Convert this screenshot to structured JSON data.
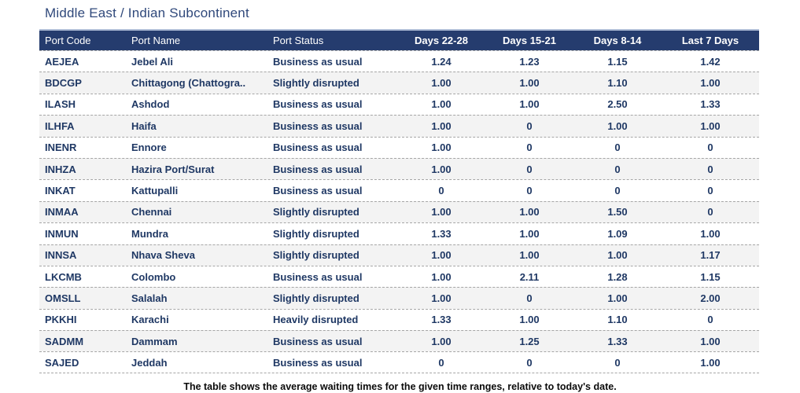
{
  "title": "Middle East / Indian Subcontinent",
  "caption": "The table shows the average waiting times for the given time ranges, relative to today's date.",
  "colors": {
    "header_background": "#253C6E",
    "header_text": "#FFFFFF",
    "cell_text": "#1F3864",
    "title_text": "#30497B",
    "row_stripe": "#F3F3F3",
    "separator": "#A6A6A6"
  },
  "chart_data": {
    "type": "table",
    "title": "Middle East / Indian Subcontinent",
    "columns": [
      {
        "label": "Port Code",
        "numeric": false
      },
      {
        "label": "Port Name",
        "numeric": false
      },
      {
        "label": "Port Status",
        "numeric": false
      },
      {
        "label": "Days 22-28",
        "numeric": true
      },
      {
        "label": "Days 15-21",
        "numeric": true
      },
      {
        "label": "Days 8-14",
        "numeric": true
      },
      {
        "label": "Last 7 Days",
        "numeric": true
      }
    ],
    "rows": [
      [
        "AEJEA",
        "Jebel Ali",
        "Business as usual",
        "1.24",
        "1.23",
        "1.15",
        "1.42"
      ],
      [
        "BDCGP",
        "Chittagong (Chattogra..",
        "Slightly disrupted",
        "1.00",
        "1.00",
        "1.10",
        "1.00"
      ],
      [
        "ILASH",
        "Ashdod",
        "Business as usual",
        "1.00",
        "1.00",
        "2.50",
        "1.33"
      ],
      [
        "ILHFA",
        "Haifa",
        "Business as usual",
        "1.00",
        "0",
        "1.00",
        "1.00"
      ],
      [
        "INENR",
        "Ennore",
        "Business as usual",
        "1.00",
        "0",
        "0",
        "0"
      ],
      [
        "INHZA",
        "Hazira Port/Surat",
        "Business as usual",
        "1.00",
        "0",
        "0",
        "0"
      ],
      [
        "INKAT",
        "Kattupalli",
        "Business as usual",
        "0",
        "0",
        "0",
        "0"
      ],
      [
        "INMAA",
        "Chennai",
        "Slightly disrupted",
        "1.00",
        "1.00",
        "1.50",
        "0"
      ],
      [
        "INMUN",
        "Mundra",
        "Slightly disrupted",
        "1.33",
        "1.00",
        "1.09",
        "1.00"
      ],
      [
        "INNSA",
        "Nhava Sheva",
        "Slightly disrupted",
        "1.00",
        "1.00",
        "1.00",
        "1.17"
      ],
      [
        "LKCMB",
        "Colombo",
        "Business as usual",
        "1.00",
        "2.11",
        "1.28",
        "1.15"
      ],
      [
        "OMSLL",
        "Salalah",
        "Slightly disrupted",
        "1.00",
        "0",
        "1.00",
        "2.00"
      ],
      [
        "PKKHI",
        "Karachi",
        "Heavily disrupted",
        "1.33",
        "1.00",
        "1.10",
        "0"
      ],
      [
        "SADMM",
        "Dammam",
        "Business as usual",
        "1.00",
        "1.25",
        "1.33",
        "1.00"
      ],
      [
        "SAJED",
        "Jeddah",
        "Business as usual",
        "0",
        "0",
        "0",
        "1.00"
      ]
    ],
    "caption": "The table shows the average waiting times for the given time ranges, relative to today's date."
  }
}
